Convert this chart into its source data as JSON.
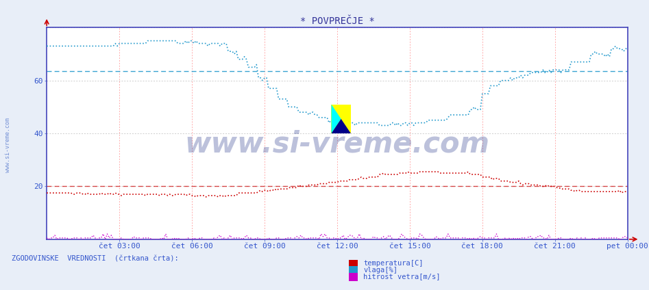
{
  "title": "* POVPREČJE *",
  "bg_color": "#e8eef8",
  "plot_bg_color": "#ffffff",
  "border_color": "#4444bb",
  "grid_color_v": "#ffaaaa",
  "grid_color_h": "#cccccc",
  "ylim": [
    0,
    80
  ],
  "xlim": [
    0,
    288
  ],
  "yticks": [
    20,
    40,
    60
  ],
  "xtick_labels": [
    "čet 03:00",
    "čet 06:00",
    "čet 09:00",
    "čet 12:00",
    "čet 15:00",
    "čet 18:00",
    "čet 21:00",
    "pet 00:00"
  ],
  "xtick_positions": [
    36,
    72,
    108,
    144,
    180,
    216,
    252,
    288
  ],
  "hist_temp": 20.0,
  "hist_vlaga": 63.5,
  "title_color": "#333399",
  "axis_label_color": "#3355cc",
  "watermark": "www.si-vreme.com",
  "watermark_color": "#223388",
  "legend_label_color": "#3355cc",
  "temp_color": "#cc0000",
  "vlaga_color": "#2299cc",
  "wind_color": "#cc00cc",
  "sidewatermark_color": "#5577cc"
}
